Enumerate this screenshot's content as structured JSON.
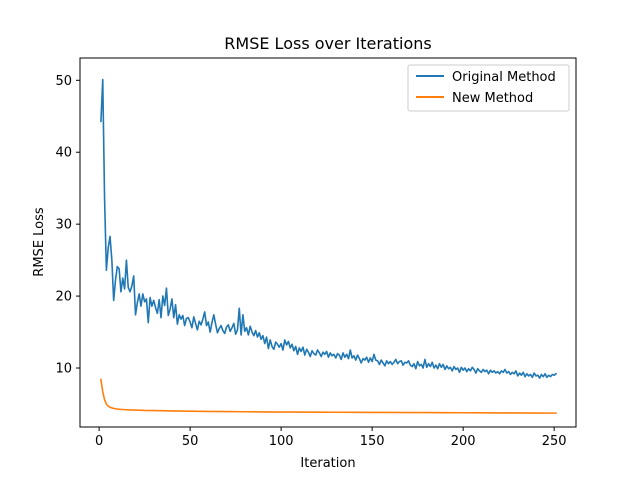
{
  "chart_data": {
    "type": "line",
    "title": "RMSE Loss over Iterations",
    "xlabel": "Iteration",
    "ylabel": "RMSE Loss",
    "xlim": [
      -10.5,
      262
    ],
    "ylim": [
      1.8,
      53.1
    ],
    "xticks": [
      0,
      50,
      100,
      150,
      200,
      250
    ],
    "yticks": [
      10,
      20,
      30,
      40,
      50
    ],
    "grid": false,
    "legend_position": "top-right",
    "series": [
      {
        "name": "Original Method",
        "color": "#1f77b4",
        "points": [
          [
            1,
            44.3
          ],
          [
            2,
            50.1
          ],
          [
            3,
            33.5
          ],
          [
            4,
            23.6
          ],
          [
            5,
            26.7
          ],
          [
            6,
            28.3
          ],
          [
            7,
            25.0
          ],
          [
            8,
            19.4
          ],
          [
            9,
            22.2
          ],
          [
            10,
            24.1
          ],
          [
            11,
            23.8
          ],
          [
            12,
            20.6
          ],
          [
            13,
            22.5
          ],
          [
            14,
            21.0
          ],
          [
            15,
            25.0
          ],
          [
            16,
            21.2
          ],
          [
            17,
            20.6
          ],
          [
            18,
            21.4
          ],
          [
            19,
            22.8
          ],
          [
            20,
            17.4
          ],
          [
            21,
            19.1
          ],
          [
            22,
            20.3
          ],
          [
            23,
            18.6
          ],
          [
            24,
            20.3
          ],
          [
            25,
            19.2
          ],
          [
            26,
            19.6
          ],
          [
            27,
            16.3
          ],
          [
            28,
            19.8
          ],
          [
            29,
            18.6
          ],
          [
            30,
            19.4
          ],
          [
            31,
            18.4
          ],
          [
            32,
            17.6
          ],
          [
            33,
            19.5
          ],
          [
            34,
            17.0
          ],
          [
            35,
            20.0
          ],
          [
            36,
            18.7
          ],
          [
            37,
            21.1
          ],
          [
            38,
            17.3
          ],
          [
            39,
            18.2
          ],
          [
            40,
            19.6
          ],
          [
            41,
            17.0
          ],
          [
            42,
            18.8
          ],
          [
            43,
            16.1
          ],
          [
            44,
            17.4
          ],
          [
            45,
            16.8
          ],
          [
            46,
            17.3
          ],
          [
            47,
            15.9
          ],
          [
            48,
            16.9
          ],
          [
            49,
            17.0
          ],
          [
            50,
            16.4
          ],
          [
            51,
            15.6
          ],
          [
            52,
            17.1
          ],
          [
            53,
            16.2
          ],
          [
            54,
            15.3
          ],
          [
            55,
            16.5
          ],
          [
            56,
            16.0
          ],
          [
            57,
            16.8
          ],
          [
            58,
            17.8
          ],
          [
            59,
            15.9
          ],
          [
            60,
            16.4
          ],
          [
            61,
            15.0
          ],
          [
            62,
            16.3
          ],
          [
            63,
            17.4
          ],
          [
            64,
            16.1
          ],
          [
            65,
            14.9
          ],
          [
            66,
            15.5
          ],
          [
            67,
            15.9
          ],
          [
            68,
            15.2
          ],
          [
            69,
            14.8
          ],
          [
            70,
            15.7
          ],
          [
            71,
            16.0
          ],
          [
            72,
            15.1
          ],
          [
            73,
            15.6
          ],
          [
            74,
            16.2
          ],
          [
            75,
            14.7
          ],
          [
            76,
            15.3
          ],
          [
            77,
            18.3
          ],
          [
            78,
            14.6
          ],
          [
            79,
            17.4
          ],
          [
            80,
            15.1
          ],
          [
            81,
            15.6
          ],
          [
            82,
            14.6
          ],
          [
            83,
            15.8
          ],
          [
            84,
            15.0
          ],
          [
            85,
            14.5
          ],
          [
            86,
            15.2
          ],
          [
            87,
            14.3
          ],
          [
            88,
            14.9
          ],
          [
            89,
            14.0
          ],
          [
            90,
            14.5
          ],
          [
            91,
            13.4
          ],
          [
            92,
            14.3
          ],
          [
            93,
            12.7
          ],
          [
            94,
            13.9
          ],
          [
            95,
            13.0
          ],
          [
            96,
            12.6
          ],
          [
            97,
            13.6
          ],
          [
            98,
            13.3
          ],
          [
            99,
            12.9
          ],
          [
            100,
            13.4
          ],
          [
            101,
            12.5
          ],
          [
            102,
            13.9
          ],
          [
            103,
            13.2
          ],
          [
            104,
            13.7
          ],
          [
            105,
            12.8
          ],
          [
            106,
            13.3
          ],
          [
            107,
            12.4
          ],
          [
            108,
            13.0
          ],
          [
            109,
            11.9
          ],
          [
            110,
            12.8
          ],
          [
            111,
            12.3
          ],
          [
            112,
            12.9
          ],
          [
            113,
            11.8
          ],
          [
            114,
            12.6
          ],
          [
            115,
            12.2
          ],
          [
            116,
            11.6
          ],
          [
            117,
            12.4
          ],
          [
            118,
            12.0
          ],
          [
            119,
            11.8
          ],
          [
            120,
            12.5
          ],
          [
            121,
            12.1
          ],
          [
            122,
            11.6
          ],
          [
            123,
            12.2
          ],
          [
            124,
            11.9
          ],
          [
            125,
            12.3
          ],
          [
            126,
            11.5
          ],
          [
            127,
            12.1
          ],
          [
            128,
            11.7
          ],
          [
            129,
            11.9
          ],
          [
            130,
            11.4
          ],
          [
            131,
            12.0
          ],
          [
            132,
            11.8
          ],
          [
            133,
            11.2
          ],
          [
            134,
            12.1
          ],
          [
            135,
            11.5
          ],
          [
            136,
            11.9
          ],
          [
            137,
            11.3
          ],
          [
            138,
            12.5
          ],
          [
            139,
            11.4
          ],
          [
            140,
            11.7
          ],
          [
            141,
            11.1
          ],
          [
            142,
            11.8
          ],
          [
            143,
            11.3
          ],
          [
            144,
            10.7
          ],
          [
            145,
            11.3
          ],
          [
            146,
            11.1
          ],
          [
            147,
            11.5
          ],
          [
            148,
            10.8
          ],
          [
            149,
            11.4
          ],
          [
            150,
            10.9
          ],
          [
            151,
            11.9
          ],
          [
            152,
            11.1
          ],
          [
            153,
            11.0
          ],
          [
            154,
            10.5
          ],
          [
            155,
            11.1
          ],
          [
            156,
            10.7
          ],
          [
            157,
            10.3
          ],
          [
            158,
            11.0
          ],
          [
            159,
            10.6
          ],
          [
            160,
            10.9
          ],
          [
            161,
            10.5
          ],
          [
            162,
            10.8
          ],
          [
            163,
            11.2
          ],
          [
            164,
            10.6
          ],
          [
            165,
            10.9
          ],
          [
            166,
            11.0
          ],
          [
            167,
            10.4
          ],
          [
            168,
            10.8
          ],
          [
            169,
            10.7
          ],
          [
            170,
            11.0
          ],
          [
            171,
            10.4
          ],
          [
            172,
            10.2
          ],
          [
            173,
            10.6
          ],
          [
            174,
            9.9
          ],
          [
            175,
            10.9
          ],
          [
            176,
            10.3
          ],
          [
            177,
            10.5
          ],
          [
            178,
            10.0
          ],
          [
            179,
            11.2
          ],
          [
            180,
            10.1
          ],
          [
            181,
            10.6
          ],
          [
            182,
            10.2
          ],
          [
            183,
            10.8
          ],
          [
            184,
            10.0
          ],
          [
            185,
            10.4
          ],
          [
            186,
            9.9
          ],
          [
            187,
            10.6
          ],
          [
            188,
            10.1
          ],
          [
            189,
            10.5
          ],
          [
            190,
            9.8
          ],
          [
            191,
            10.3
          ],
          [
            192,
            9.9
          ],
          [
            193,
            10.1
          ],
          [
            194,
            9.6
          ],
          [
            195,
            10.2
          ],
          [
            196,
            9.8
          ],
          [
            197,
            10.0
          ],
          [
            198,
            9.4
          ],
          [
            199,
            10.1
          ],
          [
            200,
            9.7
          ],
          [
            201,
            10.0
          ],
          [
            202,
            9.5
          ],
          [
            203,
            9.9
          ],
          [
            204,
            9.6
          ],
          [
            205,
            10.1
          ],
          [
            206,
            9.8
          ],
          [
            207,
            9.3
          ],
          [
            208,
            9.9
          ],
          [
            209,
            9.6
          ],
          [
            210,
            9.4
          ],
          [
            211,
            9.8
          ],
          [
            212,
            9.5
          ],
          [
            213,
            9.7
          ],
          [
            214,
            9.2
          ],
          [
            215,
            9.7
          ],
          [
            216,
            9.4
          ],
          [
            217,
            9.6
          ],
          [
            218,
            9.3
          ],
          [
            219,
            9.5
          ],
          [
            220,
            9.2
          ],
          [
            221,
            9.6
          ],
          [
            222,
            9.4
          ],
          [
            223,
            9.8
          ],
          [
            224,
            9.3
          ],
          [
            225,
            9.5
          ],
          [
            226,
            9.1
          ],
          [
            227,
            9.4
          ],
          [
            228,
            9.2
          ],
          [
            229,
            9.6
          ],
          [
            230,
            8.9
          ],
          [
            231,
            9.3
          ],
          [
            232,
            9.0
          ],
          [
            233,
            9.4
          ],
          [
            234,
            8.8
          ],
          [
            235,
            9.2
          ],
          [
            236,
            8.9
          ],
          [
            237,
            9.1
          ],
          [
            238,
            8.7
          ],
          [
            239,
            9.3
          ],
          [
            240,
            8.9
          ],
          [
            241,
            9.0
          ],
          [
            242,
            8.6
          ],
          [
            243,
            9.1
          ],
          [
            244,
            8.8
          ],
          [
            245,
            9.2
          ],
          [
            246,
            8.7
          ],
          [
            247,
            9.0
          ],
          [
            248,
            8.8
          ],
          [
            249,
            9.1
          ],
          [
            250,
            9.0
          ],
          [
            251,
            9.2
          ]
        ]
      },
      {
        "name": "New Method",
        "color": "#ff7f0e",
        "points": [
          [
            1,
            8.4
          ],
          [
            2,
            6.7
          ],
          [
            3,
            5.6
          ],
          [
            4,
            5.0
          ],
          [
            5,
            4.7
          ],
          [
            6,
            4.55
          ],
          [
            7,
            4.45
          ],
          [
            8,
            4.38
          ],
          [
            10,
            4.3
          ],
          [
            12,
            4.25
          ],
          [
            15,
            4.2
          ],
          [
            20,
            4.15
          ],
          [
            25,
            4.1
          ],
          [
            30,
            4.08
          ],
          [
            40,
            4.04
          ],
          [
            50,
            4.0
          ],
          [
            60,
            3.97
          ],
          [
            70,
            3.94
          ],
          [
            80,
            3.92
          ],
          [
            90,
            3.9
          ],
          [
            100,
            3.88
          ],
          [
            110,
            3.87
          ],
          [
            120,
            3.86
          ],
          [
            130,
            3.85
          ],
          [
            140,
            3.84
          ],
          [
            150,
            3.83
          ],
          [
            160,
            3.82
          ],
          [
            170,
            3.81
          ],
          [
            180,
            3.8
          ],
          [
            190,
            3.79
          ],
          [
            200,
            3.78
          ],
          [
            210,
            3.77
          ],
          [
            220,
            3.76
          ],
          [
            230,
            3.75
          ],
          [
            240,
            3.74
          ],
          [
            250,
            3.73
          ],
          [
            251,
            3.73
          ]
        ]
      }
    ]
  }
}
